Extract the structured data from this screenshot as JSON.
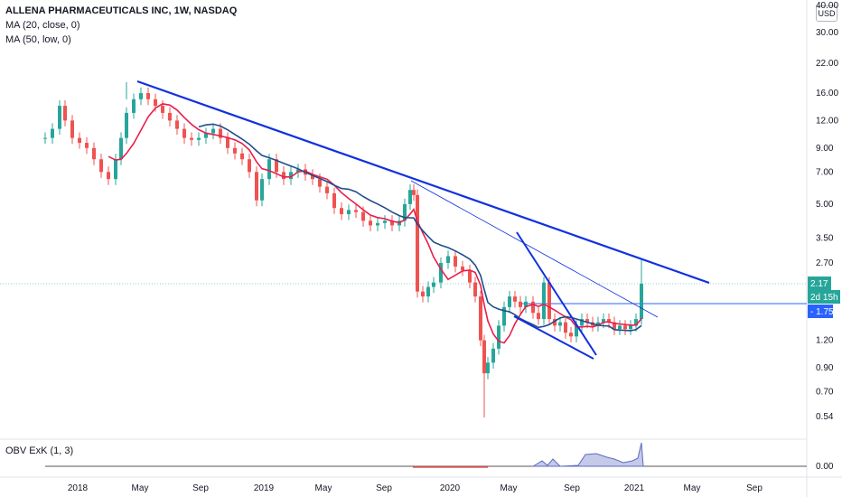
{
  "header": {
    "title": "ALLENA PHARMACEUTICALS INC, 1W, NASDAQ",
    "ma20": "MA (20, close, 0)",
    "ma50": "MA (50, low, 0)",
    "currency": "USD"
  },
  "obv": {
    "label": "OBV ExK (1, 3)",
    "tick": "0.00"
  },
  "price_tags": {
    "last": "2.17",
    "countdown": "2d 15h",
    "level": "1.75"
  },
  "colors": {
    "up": "#26a69a",
    "down": "#ef5350",
    "ma20": "#e91e4b",
    "ma50": "#1f4e8c",
    "trend": "#1030e0",
    "tag_blue": "#2962ff",
    "tag_green": "#26a69a",
    "obv_fill": "#c5cae9"
  },
  "chart_data": {
    "type": "candlestick",
    "x_ticks": [
      "2018",
      "May",
      "Sep",
      "2019",
      "May",
      "Sep",
      "2020",
      "May",
      "Sep",
      "2021",
      "May",
      "Sep"
    ],
    "y_ticks": [
      "40.00",
      "30.00",
      "22.00",
      "16.00",
      "12.00",
      "9.00",
      "7.00",
      "5.00",
      "3.50",
      "2.70",
      "1.20",
      "0.90",
      "0.70",
      "0.54"
    ],
    "y_scale": "log",
    "ylim": [
      0.5,
      40
    ],
    "series": [
      {
        "name": "MA (20, close, 0)",
        "type": "line"
      },
      {
        "name": "MA (50, low, 0)",
        "type": "line"
      }
    ],
    "approx_close": {
      "2018": 10,
      "2018-May": 16,
      "2019": 7,
      "2019-Sep": 5.5,
      "2019-Oct": 2,
      "2020-Mar": 0.8,
      "2021": 2.17
    }
  }
}
